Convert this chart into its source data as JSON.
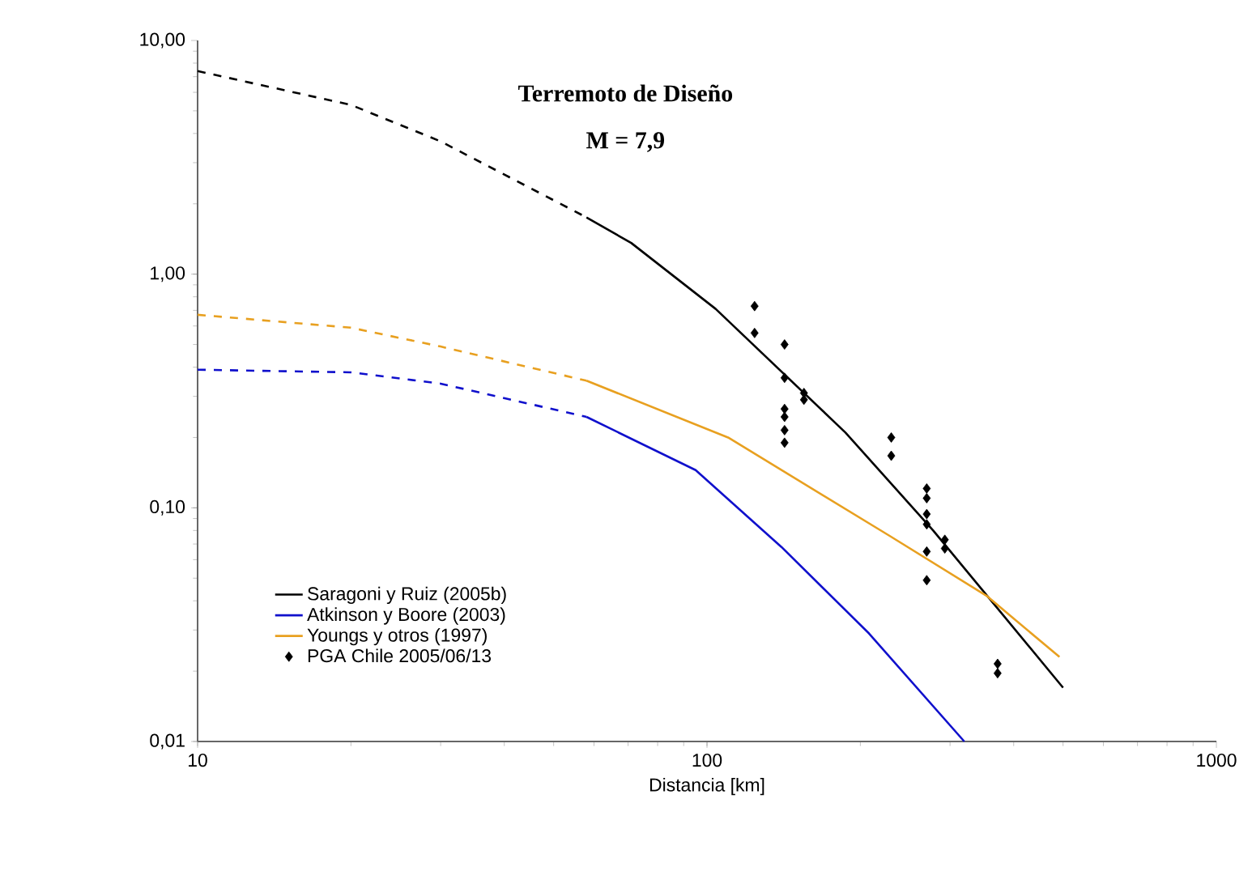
{
  "chart_data": {
    "type": "line",
    "title": "Terremoto de Diseño",
    "subtitle": "M = 7,9",
    "xlabel": "Distancia [km]",
    "log": "xy",
    "xlim": [
      10,
      1000
    ],
    "ylim": [
      0.01,
      10
    ],
    "xticks": [
      10,
      100,
      1000
    ],
    "yticks": [
      {
        "value": 0.01,
        "label": "0,01"
      },
      {
        "value": 0.1,
        "label": "0,10"
      },
      {
        "value": 1,
        "label": "1,00"
      },
      {
        "value": 10,
        "label": "10,00"
      }
    ],
    "grid": false,
    "legend": "bottom left",
    "marker": "none",
    "series": [
      {
        "name": "Saragoni y Ruiz (2005b)",
        "color": "#000000",
        "line_style": "solid",
        "x": [
          58,
          71,
          104,
          187,
          278,
          500
        ],
        "values": [
          1.75,
          1.36,
          0.71,
          0.21,
          0.08,
          0.017
        ]
      },
      {
        "name": "Atkinson y Boore (2003)",
        "color": "#1010cc",
        "line_style": "solid",
        "x": [
          58,
          95,
          140,
          208,
          320
        ],
        "values": [
          0.245,
          0.145,
          0.068,
          0.029,
          0.01
        ]
      },
      {
        "name": "Youngs y otros (1997)",
        "color": "#e8a020",
        "line_style": "solid",
        "x": [
          58,
          110,
          228,
          354,
          492
        ],
        "values": [
          0.35,
          0.2,
          0.076,
          0.042,
          0.023
        ]
      },
      {
        "name": "PGA Chile 2005/06/13",
        "type": "scatter",
        "color": "#000000",
        "marker": "diamond",
        "x": [
          124,
          124,
          142,
          142,
          142,
          142,
          142,
          142,
          155,
          155,
          230,
          230,
          270,
          270,
          270,
          270,
          270,
          270,
          293,
          293,
          372,
          372
        ],
        "values": [
          0.73,
          0.56,
          0.5,
          0.36,
          0.265,
          0.245,
          0.215,
          0.19,
          0.31,
          0.29,
          0.2,
          0.167,
          0.121,
          0.11,
          0.094,
          0.085,
          0.065,
          0.049,
          0.073,
          0.067,
          0.0215,
          0.0196
        ]
      },
      {
        "color": "#000000",
        "line_style": "dashed",
        "x": [
          10,
          20,
          30,
          58
        ],
        "values": [
          7.4,
          5.3,
          3.7,
          1.75
        ]
      },
      {
        "color": "#1010cc",
        "line_style": "dashed",
        "x": [
          10,
          20,
          30,
          58
        ],
        "values": [
          0.39,
          0.38,
          0.34,
          0.245
        ]
      },
      {
        "color": "#e8a020",
        "line_style": "dashed",
        "x": [
          10,
          20,
          30,
          58
        ],
        "values": [
          0.67,
          0.59,
          0.49,
          0.35
        ]
      }
    ]
  }
}
